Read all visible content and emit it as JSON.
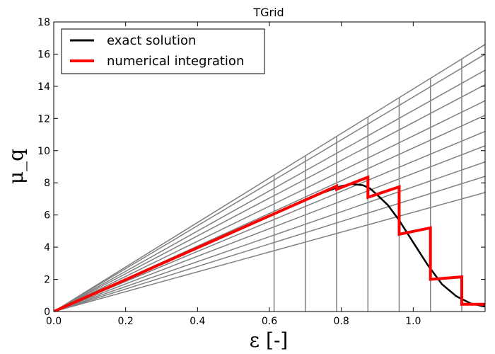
{
  "chart_data": {
    "type": "line",
    "title": "TGrid",
    "xlabel": "ε [-]",
    "ylabel": "μ_q",
    "xlim": [
      0.0,
      1.2
    ],
    "ylim": [
      0,
      18
    ],
    "xticks": [
      "0.0",
      "0.2",
      "0.4",
      "0.6",
      "0.8",
      "1.0"
    ],
    "xtick_values": [
      0.0,
      0.2,
      0.4,
      0.6,
      0.8,
      1.0
    ],
    "yticks": [
      "0",
      "2",
      "4",
      "6",
      "8",
      "10",
      "12",
      "14",
      "16",
      "18"
    ],
    "ytick_values": [
      0,
      2,
      4,
      6,
      8,
      10,
      12,
      14,
      16,
      18
    ],
    "grid": false,
    "legend_position": "top-left",
    "series": [
      {
        "name": "exact solution",
        "color": "#000000",
        "x": [
          0.0,
          0.1,
          0.2,
          0.3,
          0.4,
          0.5,
          0.6,
          0.7,
          0.75,
          0.8,
          0.83,
          0.86,
          0.88,
          0.9,
          0.93,
          0.96,
          1.0,
          1.04,
          1.08,
          1.12,
          1.16,
          1.2
        ],
        "y": [
          0.0,
          1.0,
          2.0,
          3.0,
          3.95,
          4.95,
          5.95,
          6.9,
          7.4,
          7.8,
          7.92,
          7.85,
          7.65,
          7.25,
          6.6,
          5.7,
          4.3,
          2.9,
          1.7,
          0.95,
          0.5,
          0.3
        ]
      },
      {
        "name": "numerical integration",
        "color": "#ff0000",
        "x": [
          0.0,
          0.787,
          0.787,
          0.874,
          0.874,
          0.961,
          0.961,
          1.048,
          1.048,
          1.135,
          1.135,
          1.2
        ],
        "y": [
          0.0,
          7.8,
          7.6,
          8.35,
          7.1,
          7.75,
          4.8,
          5.2,
          2.0,
          2.15,
          0.45,
          0.45
        ]
      }
    ],
    "background_lines": {
      "color": "#808080",
      "fan_slopes_at_xmax": [
        7.4,
        8.4,
        9.3,
        10.3,
        11.2,
        12.2,
        13.1,
        14.1,
        15.0,
        16.0,
        16.6
      ],
      "vertical_x": [
        0.613,
        0.7,
        0.787,
        0.874,
        0.961,
        1.048,
        1.135
      ]
    }
  }
}
